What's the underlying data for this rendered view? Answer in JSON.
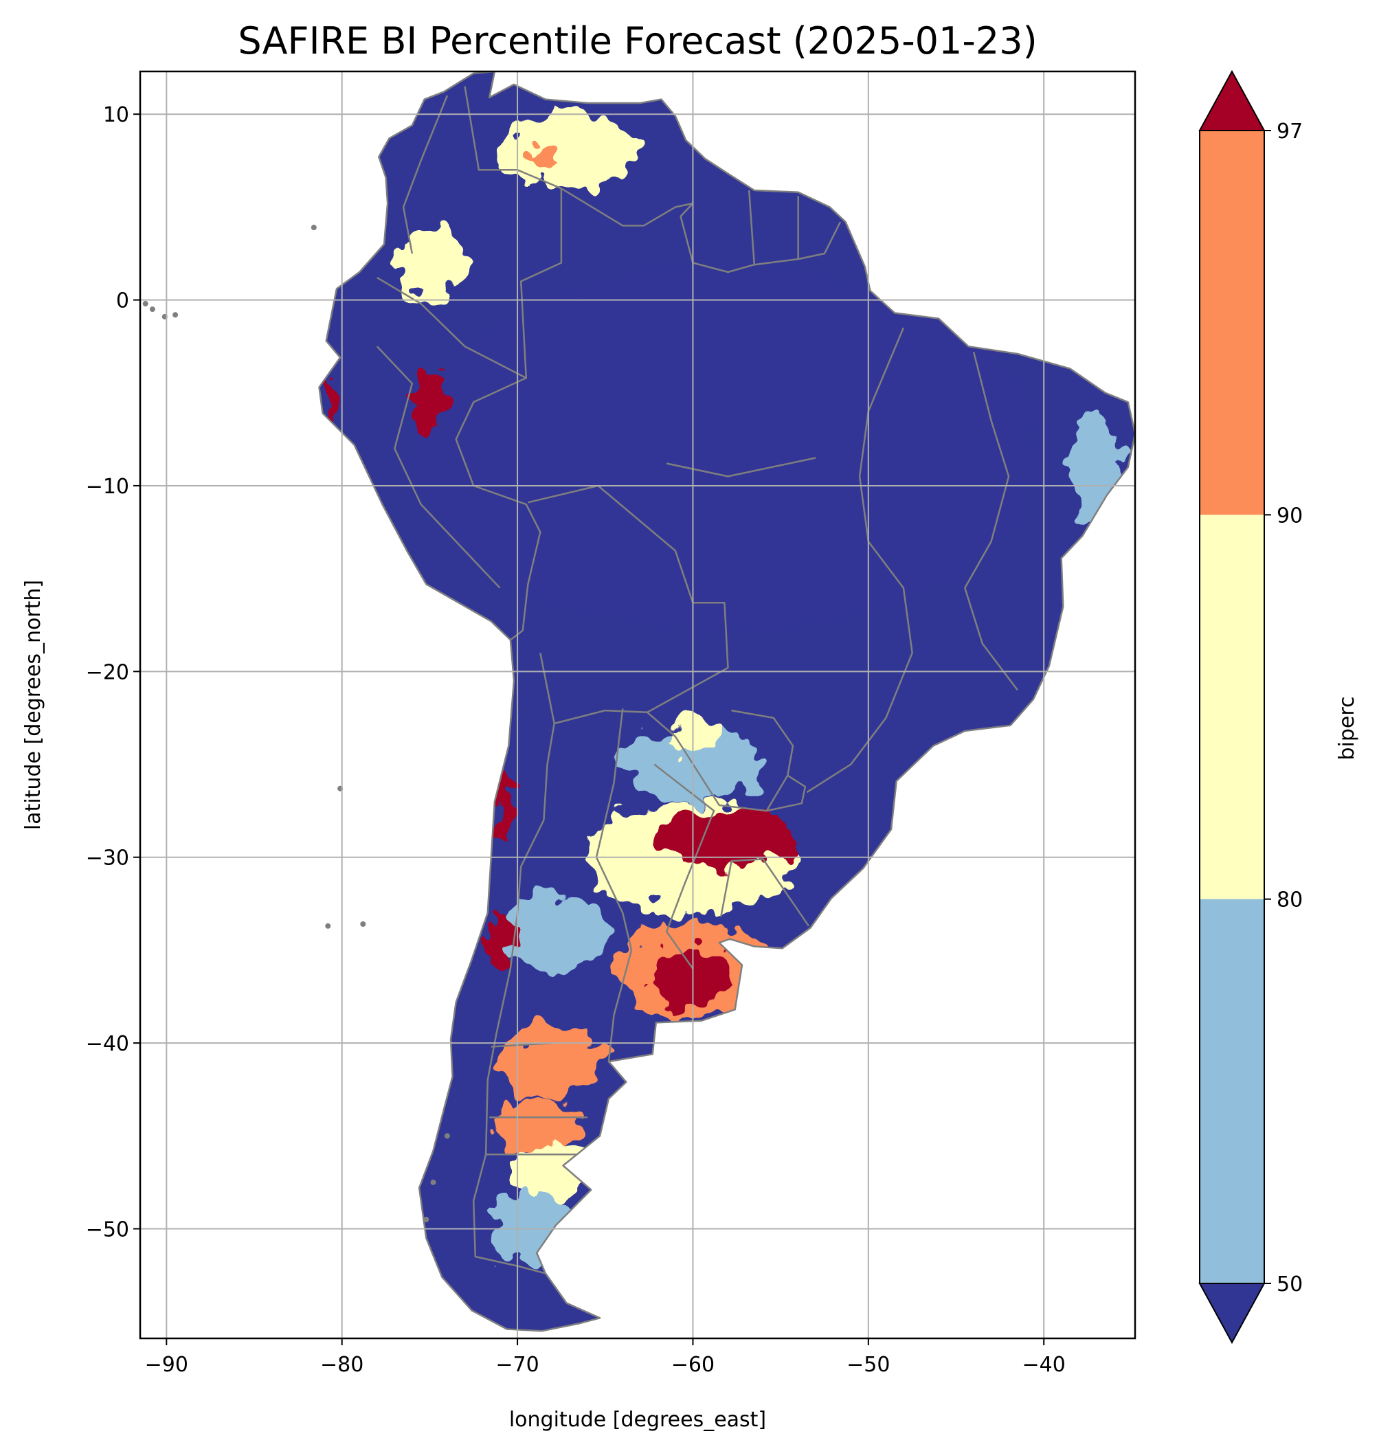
{
  "title": "SAFIRE BI Percentile Forecast (2025-01-23)",
  "chart_data": {
    "type": "heatmap",
    "title": "SAFIRE BI Percentile Forecast (2025-01-23)",
    "xlabel": "longitude [degrees_east]",
    "ylabel": "latitude [degrees_north]",
    "xlim": [
      -91.5,
      -34.8
    ],
    "ylim": [
      -55.9,
      12.3
    ],
    "xticks": [
      -90,
      -80,
      -70,
      -60,
      -50,
      -40
    ],
    "xtick_labels": [
      "−90",
      "−80",
      "−70",
      "−60",
      "−50",
      "−40"
    ],
    "yticks": [
      10,
      0,
      -10,
      -20,
      -30,
      -40,
      -50
    ],
    "ytick_labels": [
      "10",
      "0",
      "−10",
      "−20",
      "−30",
      "−40",
      "−50"
    ],
    "grid": true,
    "colorbar": {
      "label": "biperc",
      "boundaries": [
        50,
        80,
        90,
        97
      ],
      "tick_labels": [
        "50",
        "80",
        "90",
        "97"
      ],
      "extend": "both",
      "colors": {
        "under": "#313695",
        "50-80": "#91bfdb",
        "80-90": "#ffffbf",
        "90-97": "#fc8d59",
        "over": "#a50026"
      }
    },
    "border_color": "#7f7f7f",
    "regions": [
      {
        "category": "<50",
        "lon": -58,
        "lat": -8,
        "rx": 18,
        "ry": 10
      },
      {
        "category": "80-90",
        "lon": -67,
        "lat": 8,
        "rx": 4,
        "ry": 2
      },
      {
        "category": "90-97",
        "lon": -68.5,
        "lat": 7.5,
        "rx": 1,
        "ry": 0.8
      },
      {
        "category": "80-90",
        "lon": -75,
        "lat": 2,
        "rx": 2,
        "ry": 2
      },
      {
        "category": ">97",
        "lon": -75,
        "lat": -5.5,
        "rx": 1,
        "ry": 1.5
      },
      {
        "category": ">97",
        "lon": -80.7,
        "lat": -5.5,
        "rx": 0.6,
        "ry": 1
      },
      {
        "category": "50-80",
        "lon": -37,
        "lat": -9,
        "rx": 1.5,
        "ry": 3
      },
      {
        "category": "50-80",
        "lon": -60,
        "lat": -25,
        "rx": 4,
        "ry": 2
      },
      {
        "category": "80-90",
        "lon": -60,
        "lat": -23.5,
        "rx": 1.5,
        "ry": 1
      },
      {
        "category": "80-90",
        "lon": -60,
        "lat": -30,
        "rx": 6,
        "ry": 3
      },
      {
        "category": ">97",
        "lon": -58,
        "lat": -29,
        "rx": 4,
        "ry": 1.5
      },
      {
        "category": "90-97",
        "lon": -60,
        "lat": -36,
        "rx": 4.5,
        "ry": 2.5
      },
      {
        "category": ">97",
        "lon": -60,
        "lat": -36.5,
        "rx": 2.5,
        "ry": 1.5
      },
      {
        "category": "50-80",
        "lon": -68,
        "lat": -34,
        "rx": 3,
        "ry": 2
      },
      {
        "category": ">97",
        "lon": -71,
        "lat": -34.5,
        "rx": 0.8,
        "ry": 1.5
      },
      {
        "category": ">97",
        "lon": -70.8,
        "lat": -27,
        "rx": 0.6,
        "ry": 2
      },
      {
        "category": "90-97",
        "lon": -68,
        "lat": -41,
        "rx": 3,
        "ry": 2
      },
      {
        "category": "90-97",
        "lon": -69,
        "lat": -44.5,
        "rx": 2.5,
        "ry": 1.5
      },
      {
        "category": "80-90",
        "lon": -68,
        "lat": -47,
        "rx": 2.5,
        "ry": 1.5
      },
      {
        "category": "50-80",
        "lon": -69,
        "lat": -50,
        "rx": 2.5,
        "ry": 2
      }
    ]
  }
}
